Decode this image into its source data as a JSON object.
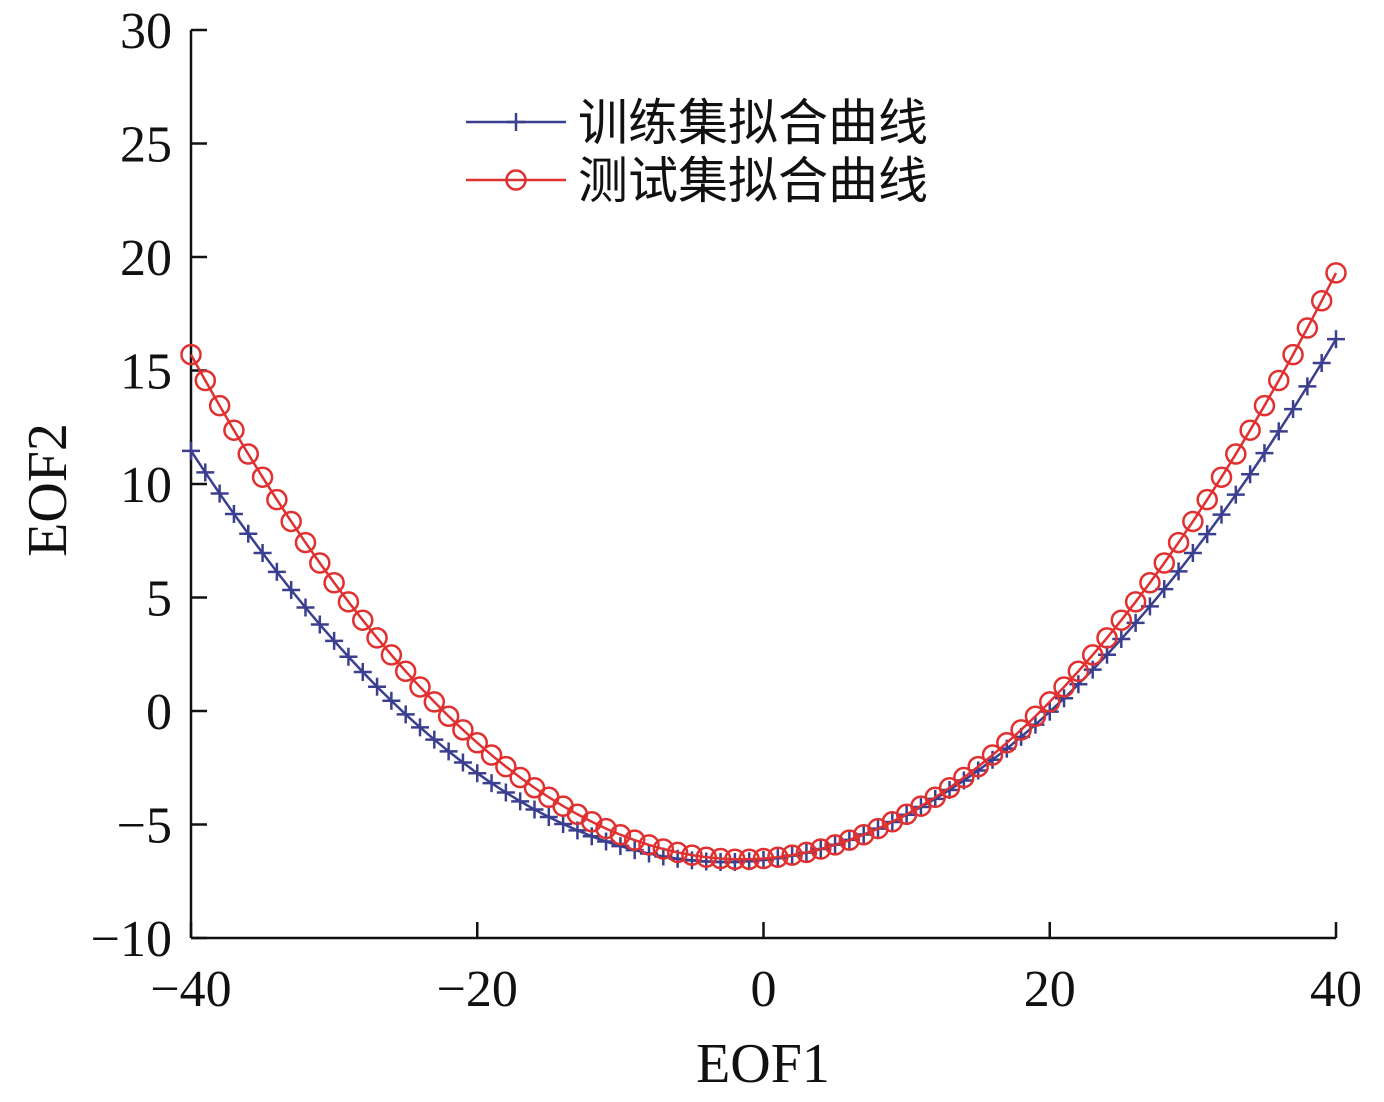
{
  "chart_data": {
    "type": "line",
    "xlabel": "EOF1",
    "ylabel": "EOF2",
    "xlim": [
      -40,
      40
    ],
    "ylim": [
      -10,
      30
    ],
    "xticks": [
      -40,
      -20,
      0,
      20,
      40
    ],
    "xtick_labels": [
      "−40",
      "−20",
      "0",
      "20",
      "40"
    ],
    "yticks": [
      -10,
      -5,
      0,
      5,
      10,
      15,
      20,
      25,
      30
    ],
    "ytick_labels": [
      "−10",
      "−5",
      "0",
      "5",
      "10",
      "15",
      "20",
      "25",
      "30"
    ],
    "grid": false,
    "legend_position": "top-center",
    "series": [
      {
        "name": "训练集拟合曲线",
        "color": "#3b3f8f",
        "marker": "plus",
        "x": [
          -40,
          -39,
          -38,
          -37,
          -36,
          -35,
          -34,
          -33,
          -32,
          -31,
          -30,
          -29,
          -28,
          -27,
          -26,
          -25,
          -24,
          -23,
          -22,
          -21,
          -20,
          -19,
          -18,
          -17,
          -16,
          -15,
          -14,
          -13,
          -12,
          -11,
          -10,
          -9,
          -8,
          -7,
          -6,
          -5,
          -4,
          -3,
          -2,
          -1,
          0,
          1,
          2,
          3,
          4,
          5,
          6,
          7,
          8,
          9,
          10,
          11,
          12,
          13,
          14,
          15,
          16,
          17,
          18,
          19,
          20,
          21,
          22,
          23,
          24,
          25,
          26,
          27,
          28,
          29,
          30,
          31,
          32,
          33,
          34,
          35,
          36,
          37,
          38,
          39,
          40
        ],
        "y": [
          11.46,
          10.51,
          9.58,
          8.68,
          7.81,
          6.96,
          6.13,
          5.33,
          4.56,
          3.81,
          3.09,
          2.39,
          1.72,
          1.07,
          0.45,
          -0.15,
          -0.72,
          -1.26,
          -1.78,
          -2.27,
          -2.74,
          -3.18,
          -3.59,
          -3.98,
          -4.34,
          -4.67,
          -4.98,
          -5.26,
          -5.52,
          -5.75,
          -5.95,
          -6.13,
          -6.28,
          -6.41,
          -6.51,
          -6.58,
          -6.63,
          -6.65,
          -6.65,
          -6.62,
          -6.56,
          -6.48,
          -6.37,
          -6.24,
          -6.08,
          -5.89,
          -5.68,
          -5.44,
          -5.18,
          -4.89,
          -4.57,
          -4.23,
          -3.87,
          -3.48,
          -3.06,
          -2.62,
          -2.15,
          -1.66,
          -1.14,
          -0.6,
          -0.03,
          0.56,
          1.18,
          1.82,
          2.48,
          3.17,
          3.88,
          4.61,
          5.37,
          6.15,
          6.96,
          7.79,
          8.65,
          9.53,
          10.43,
          11.36,
          12.32,
          13.3,
          14.3,
          15.33,
          16.38
        ]
      },
      {
        "name": "测试集拟合曲线",
        "color": "#e03030",
        "marker": "circle",
        "x": [
          -40,
          -39,
          -38,
          -37,
          -36,
          -35,
          -34,
          -33,
          -32,
          -31,
          -30,
          -29,
          -28,
          -27,
          -26,
          -25,
          -24,
          -23,
          -22,
          -21,
          -20,
          -19,
          -18,
          -17,
          -16,
          -15,
          -14,
          -13,
          -12,
          -11,
          -10,
          -9,
          -8,
          -7,
          -6,
          -5,
          -4,
          -3,
          -2,
          -1,
          0,
          1,
          2,
          3,
          4,
          5,
          6,
          7,
          8,
          9,
          10,
          11,
          12,
          13,
          14,
          15,
          16,
          17,
          18,
          19,
          20,
          21,
          22,
          23,
          24,
          25,
          26,
          27,
          28,
          29,
          30,
          31,
          32,
          33,
          34,
          35,
          36,
          37,
          38,
          39,
          40
        ],
        "y": [
          15.7,
          14.56,
          13.45,
          12.37,
          11.32,
          10.3,
          9.31,
          8.35,
          7.42,
          6.52,
          5.65,
          4.81,
          4.0,
          3.22,
          2.47,
          1.75,
          1.06,
          0.4,
          -0.23,
          -0.83,
          -1.4,
          -1.94,
          -2.45,
          -2.93,
          -3.38,
          -3.8,
          -4.19,
          -4.55,
          -4.88,
          -5.18,
          -5.45,
          -5.69,
          -5.9,
          -6.08,
          -6.23,
          -6.35,
          -6.44,
          -6.5,
          -6.53,
          -6.53,
          -6.5,
          -6.44,
          -6.35,
          -6.23,
          -6.08,
          -5.9,
          -5.69,
          -5.45,
          -5.18,
          -4.88,
          -4.55,
          -4.19,
          -3.8,
          -3.38,
          -2.93,
          -2.45,
          -1.94,
          -1.4,
          -0.83,
          -0.23,
          0.4,
          1.06,
          1.75,
          2.47,
          3.22,
          4.0,
          4.81,
          5.65,
          6.52,
          7.42,
          8.35,
          9.31,
          10.3,
          11.32,
          12.37,
          13.45,
          14.56,
          15.7,
          16.87,
          18.07,
          19.3
        ]
      }
    ]
  }
}
